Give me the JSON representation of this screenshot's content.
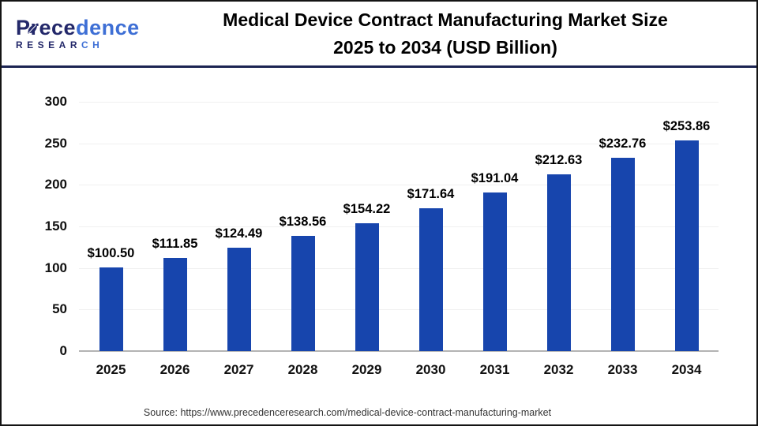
{
  "page": {
    "logo": {
      "word_dark": "Prece",
      "word_light": "dence",
      "sub_dark": "RESEAR",
      "sub_light": "CH"
    },
    "title_line1": "Medical Device Contract Manufacturing Market Size",
    "title_line2": "2025 to 2034 (USD Billion)",
    "source": "Source: https://www.precedenceresearch.com/medical-device-contract-manufacturing-market"
  },
  "colors": {
    "bar": "#1745ad",
    "logo_navy": "#23286a",
    "logo_blue": "#3e6fd5",
    "header_rule": "#1c2452",
    "frame_border": "#141414",
    "gridline": "#f0f0f0",
    "axis_line": "#b3b3b3"
  },
  "chart_data": {
    "type": "bar",
    "title": "Medical Device Contract Manufacturing Market Size 2025 to 2034 (USD Billion)",
    "categories": [
      "2025",
      "2026",
      "2027",
      "2028",
      "2029",
      "2030",
      "2031",
      "2032",
      "2033",
      "2034"
    ],
    "values": [
      100.5,
      111.85,
      124.49,
      138.56,
      154.22,
      171.64,
      191.04,
      212.63,
      232.76,
      253.86
    ],
    "value_labels": [
      "$100.50",
      "$111.85",
      "$124.49",
      "$138.56",
      "$154.22",
      "$171.64",
      "$191.04",
      "$212.63",
      "$232.76",
      "$253.86"
    ],
    "xlabel": "",
    "ylabel": "",
    "ylim": [
      0,
      300
    ],
    "ytick_step": 50,
    "grid": true,
    "legend": false,
    "unit": "USD Billion"
  }
}
